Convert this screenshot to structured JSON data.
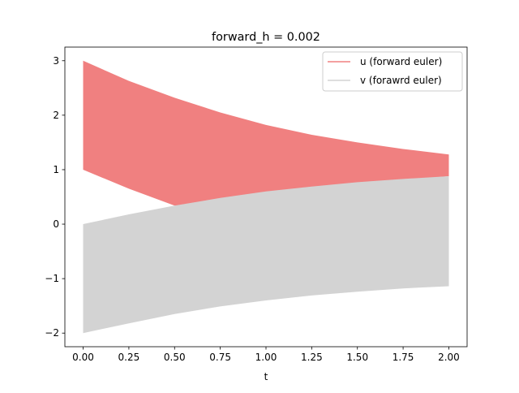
{
  "chart_data": {
    "type": "area",
    "title": "forward_h = 0.002",
    "xlabel": "t",
    "ylabel": "",
    "xlim": [
      -0.1,
      2.1
    ],
    "ylim": [
      -2.25,
      3.25
    ],
    "x_ticks": [
      0.0,
      0.25,
      0.5,
      0.75,
      1.0,
      1.25,
      1.5,
      1.75,
      2.0
    ],
    "x_tick_labels": [
      "0.00",
      "0.25",
      "0.50",
      "0.75",
      "1.00",
      "1.25",
      "1.50",
      "1.75",
      "2.00"
    ],
    "y_ticks": [
      -2,
      -1,
      0,
      1,
      2,
      3
    ],
    "y_tick_labels": [
      "−2",
      "−1",
      "0",
      "1",
      "2",
      "3"
    ],
    "grid": false,
    "legend_position": "top-right",
    "x": [
      0.0,
      0.25,
      0.5,
      0.75,
      1.0,
      1.25,
      1.5,
      1.75,
      2.0
    ],
    "series": [
      {
        "name": "u (forward euler)",
        "color": "#f08080",
        "upper": [
          3.0,
          2.63,
          2.32,
          2.05,
          1.82,
          1.64,
          1.5,
          1.38,
          1.28
        ],
        "lower": [
          1.0,
          0.65,
          0.34,
          0.4,
          0.53,
          0.63,
          0.72,
          0.81,
          0.88
        ]
      },
      {
        "name": "v (forawrd euler)",
        "color": "#d3d3d3",
        "upper": [
          0.0,
          0.18,
          0.34,
          0.48,
          0.6,
          0.69,
          0.77,
          0.83,
          0.88
        ],
        "lower": [
          -2.0,
          -1.82,
          -1.65,
          -1.51,
          -1.4,
          -1.31,
          -1.24,
          -1.18,
          -1.14
        ]
      }
    ]
  }
}
